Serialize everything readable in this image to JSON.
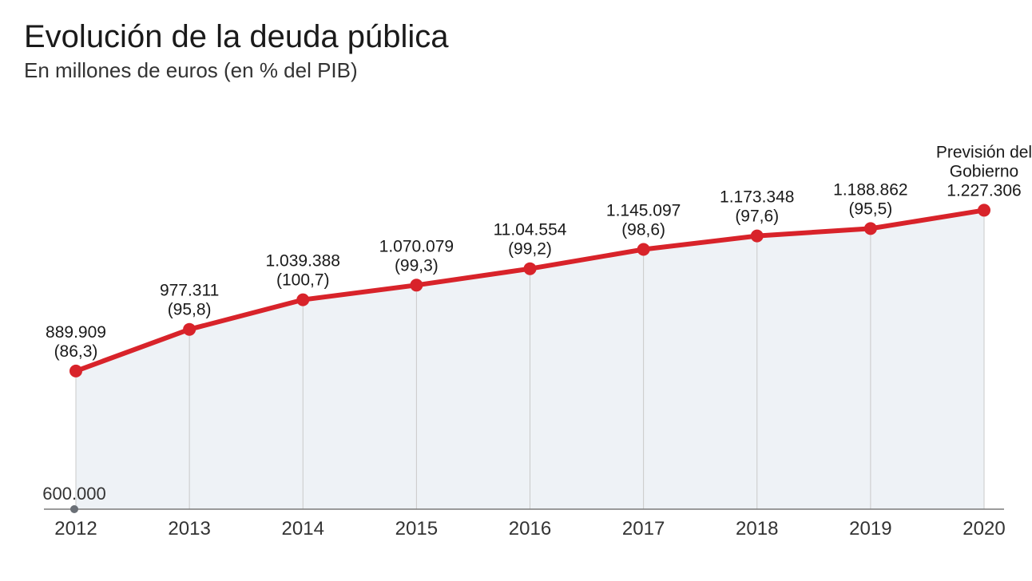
{
  "title": "Evolución de la deuda pública",
  "subtitle": "En millones de euros (en % del PIB)",
  "chart": {
    "type": "line-area",
    "background_color": "#ffffff",
    "area_fill": "#eef2f6",
    "line_color": "#d8232a",
    "line_width": 6,
    "marker_color": "#d8232a",
    "marker_radius": 8,
    "axis_color": "#7a7a7a",
    "grid_color": "#c9c9c9",
    "label_color": "#1a1a1a",
    "title_fontsize": 40,
    "subtitle_fontsize": 26,
    "xlabel_fontsize": 24,
    "datalabel_fontsize": 21,
    "y_baseline_value": 600000,
    "y_baseline_label": "600.000",
    "y_max_value": 1300000,
    "baseline_dot_color": "#6a6f76",
    "last_point_note_lines": [
      "Previsión del",
      "Gobierno"
    ],
    "series": [
      {
        "x": "2012",
        "value": 889909,
        "value_label": "889.909",
        "pct_label": "(86,3)"
      },
      {
        "x": "2013",
        "value": 977311,
        "value_label": "977.311",
        "pct_label": "(95,8)"
      },
      {
        "x": "2014",
        "value": 1039388,
        "value_label": "1.039.388",
        "pct_label": "(100,7)"
      },
      {
        "x": "2015",
        "value": 1070079,
        "value_label": "1.070.079",
        "pct_label": "(99,3)"
      },
      {
        "x": "2016",
        "value": 1104554,
        "value_label": "11.04.554",
        "pct_label": "(99,2)"
      },
      {
        "x": "2017",
        "value": 1145097,
        "value_label": "1.145.097",
        "pct_label": "(98,6)"
      },
      {
        "x": "2018",
        "value": 1173348,
        "value_label": "1.173.348",
        "pct_label": "(97,6)"
      },
      {
        "x": "2019",
        "value": 1188862,
        "value_label": "1.188.862",
        "pct_label": "(95,5)"
      },
      {
        "x": "2020",
        "value": 1227306,
        "value_label": "1.227.306",
        "pct_label": ""
      }
    ]
  }
}
